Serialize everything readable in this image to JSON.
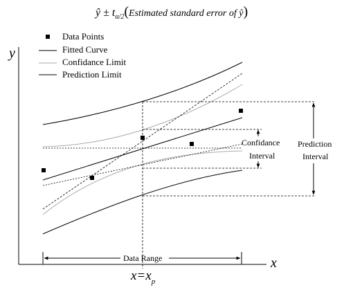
{
  "title": {
    "formula": "ŷ ± t",
    "subscript": "α/2",
    "paren_open": "(",
    "text": "Estimated standard error of ŷ",
    "paren_close": ")"
  },
  "legend": {
    "items": [
      {
        "label": "Data Points",
        "marker": "square"
      },
      {
        "label": "Fitted Curve",
        "line_color": "#000000"
      },
      {
        "label": "Confidance Limit",
        "line_color": "#aaaaaa"
      },
      {
        "label": "Prediction Limit",
        "line_color": "#000000"
      }
    ]
  },
  "axes": {
    "x_label": "x",
    "y_label": "y",
    "xp_main": "x=x",
    "xp_sub": "p"
  },
  "annotations": {
    "confidence_1": "Confidance",
    "confidence_2": "Interval",
    "prediction_1": "Prediction",
    "prediction_2": "Interval",
    "data_range": "Data Range"
  },
  "colors": {
    "ink": "#000000",
    "confidence": "#aaaaaa",
    "background": "#ffffff"
  }
}
